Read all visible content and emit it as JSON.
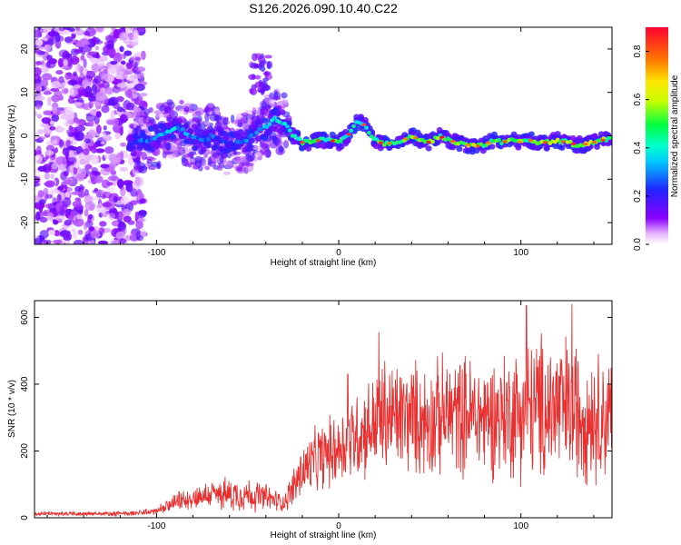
{
  "page_title": "S126.2026.090.10.40.C22",
  "colors": {
    "snr_line": "#e83030",
    "axis": "#000000",
    "background": "#ffffff"
  },
  "chart_data": [
    {
      "type": "heatmap",
      "title": "S126.2026.090.10.40.C22",
      "xlabel": "Height of straight line (km)",
      "ylabel": "Frequency (Hz)",
      "xlim": [
        -167,
        150
      ],
      "ylim": [
        -25,
        25
      ],
      "x_ticks": [
        -100,
        0,
        100
      ],
      "y_ticks": [
        -20,
        -10,
        0,
        10,
        20
      ],
      "x_tick_labels": [
        "-100",
        "0",
        "100"
      ],
      "y_tick_labels": [
        "-20",
        "-10",
        "0",
        "10",
        "20"
      ],
      "colorbar": {
        "label": "Normalized spectral amplitude",
        "range": [
          0,
          0.9
        ],
        "ticks": [
          0,
          0.2,
          0.4,
          0.6,
          0.8
        ],
        "tick_labels": [
          "0.0",
          "0.2",
          "0.4",
          "0.6",
          "0.8"
        ]
      },
      "ridge": {
        "x": [
          -115,
          -105,
          -95,
          -90,
          -85,
          -80,
          -75,
          -70,
          -65,
          -60,
          -55,
          -50,
          -45,
          -40,
          -35,
          -30,
          -25,
          -20,
          -15,
          -10,
          -5,
          0,
          5,
          10,
          13,
          15,
          20,
          25,
          30,
          35,
          40,
          45,
          50,
          55,
          60,
          65,
          70,
          75,
          80,
          85,
          90,
          95,
          100,
          105,
          110,
          115,
          120,
          125,
          130,
          135,
          140,
          145,
          150
        ],
        "y": [
          -2,
          -1,
          0.5,
          2,
          1,
          0,
          -1.5,
          0,
          -1,
          -2,
          -1.5,
          -1,
          1,
          2,
          4,
          3,
          0,
          -1.5,
          -1.5,
          -1,
          -1,
          -1.5,
          0,
          3,
          3,
          2,
          -1,
          -2,
          -1.5,
          -1,
          0,
          -1,
          -1.5,
          0,
          -1,
          -1.5,
          -2,
          -2.5,
          -2,
          -1,
          -1.5,
          -1,
          -1.5,
          -1,
          -1.5,
          -1.5,
          -1,
          -1.5,
          -2,
          -2,
          -1.5,
          -1,
          -0.5
        ],
        "amplitude": [
          0.35,
          0.4,
          0.45,
          0.5,
          0.45,
          0.4,
          0.35,
          0.4,
          0.35,
          0.3,
          0.35,
          0.4,
          0.45,
          0.5,
          0.55,
          0.55,
          0.6,
          0.7,
          0.75,
          0.7,
          0.65,
          0.7,
          0.6,
          0.55,
          0.55,
          0.6,
          0.7,
          0.75,
          0.75,
          0.7,
          0.8,
          0.75,
          0.7,
          0.75,
          0.7,
          0.75,
          0.8,
          0.85,
          0.75,
          0.7,
          0.75,
          0.7,
          0.75,
          0.75,
          0.8,
          0.75,
          0.85,
          0.75,
          0.8,
          0.85,
          0.8,
          0.75,
          0.7
        ]
      }
    },
    {
      "type": "line",
      "title": "",
      "xlabel": "Height of straight line (km)",
      "ylabel": "SNR (10 * v/v)",
      "xlim": [
        -167,
        150
      ],
      "ylim": [
        0,
        650
      ],
      "x_ticks": [
        -100,
        0,
        100
      ],
      "y_ticks": [
        0,
        200,
        400,
        600
      ],
      "x_tick_labels": [
        "-100",
        "0",
        "100"
      ],
      "y_tick_labels": [
        "0",
        "200",
        "400",
        "600"
      ],
      "series": [
        {
          "name": "SNR",
          "envelope": {
            "x": [
              -167,
              -140,
              -120,
              -110,
              -100,
              -95,
              -90,
              -80,
              -70,
              -60,
              -50,
              -40,
              -30,
              -25,
              -20,
              -10,
              0,
              5,
              10,
              20,
              25,
              30,
              40,
              50,
              60,
              70,
              80,
              90,
              100,
              110,
              120,
              130,
              140,
              150
            ],
            "mean": [
              12,
              12,
              12,
              14,
              20,
              30,
              45,
              60,
              70,
              70,
              70,
              60,
              45,
              90,
              140,
              180,
              210,
              230,
              250,
              280,
              300,
              300,
              300,
              290,
              310,
              310,
              300,
              310,
              320,
              330,
              330,
              320,
              310,
              300
            ],
            "spread": [
              8,
              8,
              8,
              10,
              15,
              20,
              30,
              40,
              50,
              60,
              60,
              50,
              30,
              70,
              100,
              120,
              130,
              150,
              160,
              180,
              220,
              200,
              200,
              200,
              210,
              210,
              210,
              220,
              240,
              260,
              270,
              250,
              230,
              220
            ]
          },
          "peaks": [
            {
              "x": 103,
              "y": 635
            },
            {
              "x": 128,
              "y": 640
            },
            {
              "x": 22,
              "y": 555
            },
            {
              "x": 5,
              "y": 430
            }
          ]
        }
      ]
    }
  ]
}
